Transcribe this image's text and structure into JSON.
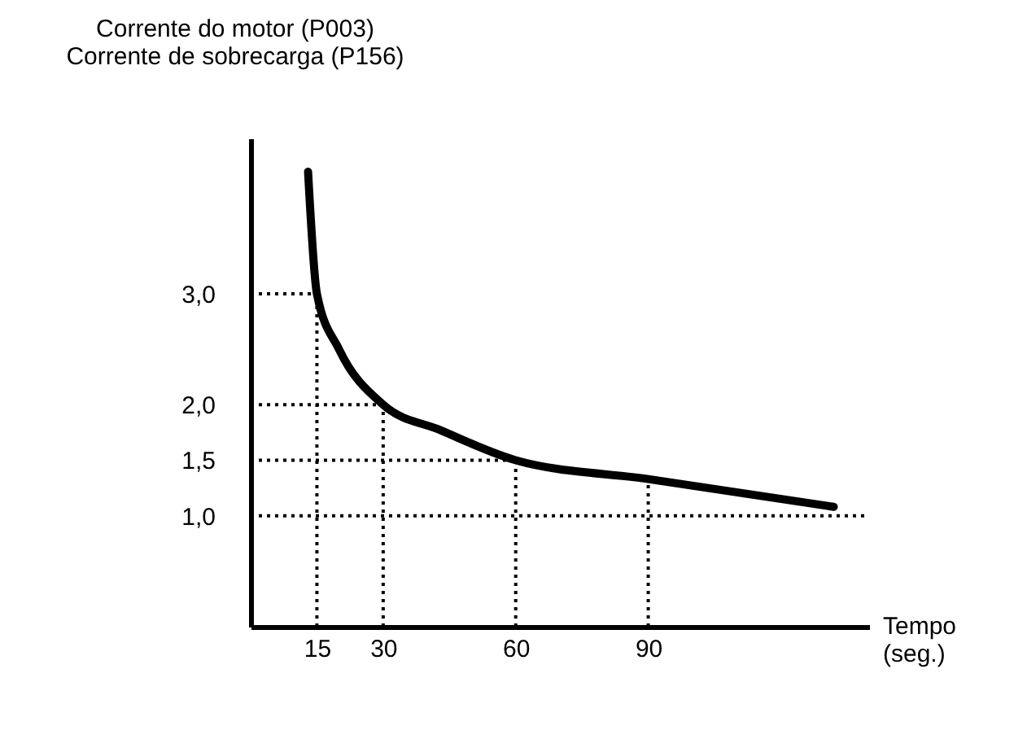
{
  "chart_data": {
    "type": "line",
    "ylabel": "Corrente do motor (P003)\nCorrente de sobrecarga (P156)",
    "xlabel": "Tempo\n(seg.)",
    "x": [
      13,
      15,
      20,
      30,
      43,
      60,
      90,
      132
    ],
    "series": [
      {
        "color": "#000000",
        "values": [
          4.1,
          3.0,
          2.5,
          2.0,
          1.77,
          1.5,
          1.33,
          1.08
        ]
      }
    ],
    "xlim": [
      0,
      140
    ],
    "ylim": [
      0,
      4.4
    ],
    "xticks": [
      15,
      30,
      60,
      90
    ],
    "yticks": [
      {
        "value": 1,
        "label": "1,0"
      },
      {
        "value": 1.5,
        "label": "1,5"
      },
      {
        "value": 2,
        "label": "2,0"
      },
      {
        "value": 3,
        "label": "3,0"
      }
    ],
    "ref_lines": [
      {
        "axis": "y",
        "value": 3,
        "line_style": "dotted"
      },
      {
        "axis": "y",
        "value": 2,
        "line_style": "dotted"
      },
      {
        "axis": "y",
        "value": 1.5,
        "line_style": "dotted"
      },
      {
        "axis": "y",
        "value": 1,
        "line_style": "dotted"
      },
      {
        "axis": "x",
        "value": 15,
        "line_style": "dotted"
      },
      {
        "axis": "x",
        "value": 30,
        "line_style": "dotted"
      },
      {
        "axis": "x",
        "value": 60,
        "line_style": "dotted"
      },
      {
        "axis": "x",
        "value": 90,
        "line_style": "dotted"
      }
    ],
    "marker": "none",
    "line_style": "solid",
    "grid": false
  }
}
